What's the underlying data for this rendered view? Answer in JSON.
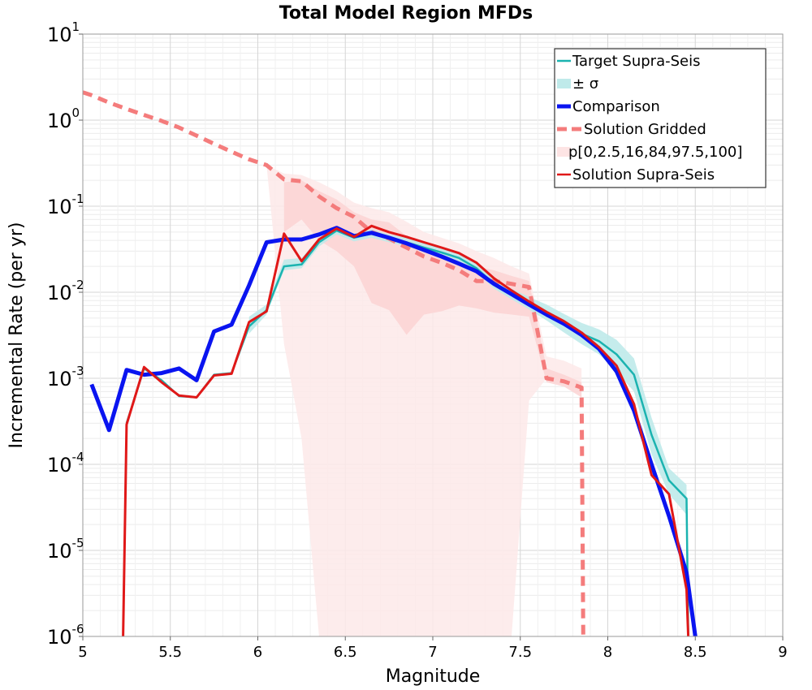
{
  "chart_data": {
    "type": "line",
    "title": "Total Model Region MFDs",
    "xlabel": "Magnitude",
    "ylabel": "Incremental Rate (per yr)",
    "xlim": [
      5,
      9
    ],
    "ylim": [
      1e-06,
      10
    ],
    "yscale": "log",
    "xticks": [
      "5",
      "5.5",
      "6",
      "6.5",
      "7",
      "7.5",
      "8",
      "8.5",
      "9"
    ],
    "yticks": [
      {
        "base": "10",
        "exp": "-6"
      },
      {
        "base": "10",
        "exp": "-5"
      },
      {
        "base": "10",
        "exp": "-4"
      },
      {
        "base": "10",
        "exp": "-3"
      },
      {
        "base": "10",
        "exp": "-2"
      },
      {
        "base": "10",
        "exp": "-1"
      },
      {
        "base": "10",
        "exp": "0"
      },
      {
        "base": "10",
        "exp": "1"
      }
    ],
    "grid": true,
    "legend_position": "top-right",
    "legend": [
      {
        "label": "Target Supra-Seis",
        "style": "line",
        "color": "#1bb3b0"
      },
      {
        "label": "± σ",
        "style": "band",
        "color": "#bfeaea"
      },
      {
        "label": "Comparison",
        "style": "thickline",
        "color": "#0a14f0"
      },
      {
        "label": "Solution Gridded",
        "style": "dashed",
        "color": "#f47c7c"
      },
      {
        "label": "p[0,2.5,16,84,97.5,100]",
        "style": "band",
        "color": "#fde4e4"
      },
      {
        "label": "Solution Supra-Seis",
        "style": "line",
        "color": "#e01818"
      }
    ],
    "series": [
      {
        "name": "Target Supra-Seis",
        "color": "#1bb3b0",
        "x": [
          5.25,
          5.35,
          5.45,
          5.55,
          5.65,
          5.75,
          5.85,
          5.95,
          6.05,
          6.15,
          6.25,
          6.35,
          6.45,
          6.55,
          6.65,
          6.75,
          6.85,
          6.95,
          7.05,
          7.15,
          7.25,
          7.35,
          7.45,
          7.55,
          7.65,
          7.75,
          7.85,
          7.95,
          8.05,
          8.15,
          8.25,
          8.35,
          8.45,
          8.46
        ],
        "y": [
          0.0003,
          0.0013,
          0.00095,
          0.00062,
          0.0006,
          0.0011,
          0.00115,
          0.004,
          0.0062,
          0.02,
          0.021,
          0.038,
          0.052,
          0.043,
          0.048,
          0.042,
          0.038,
          0.033,
          0.029,
          0.025,
          0.019,
          0.0125,
          0.0095,
          0.0075,
          0.0058,
          0.0043,
          0.0033,
          0.0027,
          0.0019,
          0.0011,
          0.00022,
          6.5e-05,
          4e-05,
          1e-06
        ]
      },
      {
        "name": "Comparison",
        "color": "#0a14f0",
        "x": [
          5.05,
          5.15,
          5.25,
          5.35,
          5.45,
          5.55,
          5.65,
          5.75,
          5.85,
          5.95,
          6.05,
          6.15,
          6.25,
          6.35,
          6.45,
          6.55,
          6.65,
          6.75,
          6.85,
          6.95,
          7.05,
          7.15,
          7.25,
          7.35,
          7.45,
          7.55,
          7.65,
          7.75,
          7.85,
          7.95,
          8.05,
          8.15,
          8.25,
          8.35,
          8.45,
          8.5
        ],
        "y": [
          0.00085,
          0.00025,
          0.00125,
          0.0011,
          0.00115,
          0.0013,
          0.00095,
          0.0035,
          0.0042,
          0.012,
          0.038,
          0.041,
          0.041,
          0.047,
          0.056,
          0.045,
          0.049,
          0.043,
          0.037,
          0.031,
          0.026,
          0.0215,
          0.0175,
          0.0125,
          0.0095,
          0.0072,
          0.0055,
          0.0043,
          0.0032,
          0.0022,
          0.0012,
          0.00042,
          0.0001,
          2.5e-05,
          5.5e-06,
          1e-06
        ]
      },
      {
        "name": "Solution Gridded",
        "color": "#f47c7c",
        "x": [
          5.0,
          5.05,
          5.15,
          5.25,
          5.35,
          5.45,
          5.55,
          5.65,
          5.75,
          5.85,
          5.95,
          6.05,
          6.15,
          6.25,
          6.35,
          6.45,
          6.55,
          6.65,
          6.75,
          6.85,
          6.95,
          7.05,
          7.15,
          7.25,
          7.35,
          7.45,
          7.55,
          7.65,
          7.75,
          7.85,
          7.86
        ],
        "y": [
          2.1,
          1.95,
          1.6,
          1.35,
          1.15,
          0.98,
          0.82,
          0.66,
          0.53,
          0.43,
          0.35,
          0.3,
          0.205,
          0.195,
          0.13,
          0.095,
          0.075,
          0.05,
          0.042,
          0.033,
          0.026,
          0.022,
          0.018,
          0.0135,
          0.0135,
          0.0125,
          0.0115,
          0.001,
          0.00092,
          0.00078,
          1e-06
        ]
      },
      {
        "name": "Solution Supra-Seis",
        "color": "#e01818",
        "x": [
          5.23,
          5.25,
          5.35,
          5.45,
          5.55,
          5.65,
          5.75,
          5.85,
          5.95,
          6.05,
          6.15,
          6.25,
          6.35,
          6.45,
          6.55,
          6.65,
          6.75,
          6.85,
          6.95,
          7.05,
          7.15,
          7.25,
          7.35,
          7.45,
          7.55,
          7.65,
          7.75,
          7.85,
          7.95,
          8.05,
          8.15,
          8.25,
          8.35,
          8.45,
          8.46
        ],
        "y": [
          1e-06,
          0.00029,
          0.00135,
          0.0009,
          0.00063,
          0.0006,
          0.00108,
          0.00113,
          0.0045,
          0.006,
          0.048,
          0.023,
          0.041,
          0.055,
          0.044,
          0.059,
          0.05,
          0.044,
          0.038,
          0.033,
          0.0285,
          0.022,
          0.0145,
          0.0105,
          0.0078,
          0.0059,
          0.0046,
          0.0034,
          0.0023,
          0.0014,
          0.0005,
          7.5e-05,
          4.5e-05,
          3.5e-06,
          1e-06
        ]
      }
    ],
    "bands": [
      {
        "name": "± σ",
        "color": "#bfeaea",
        "x": [
          5.95,
          6.05,
          6.15,
          6.25,
          6.35,
          6.45,
          6.55,
          6.65,
          6.75,
          6.85,
          6.95,
          7.05,
          7.15,
          7.25,
          7.35,
          7.45,
          7.55,
          7.65,
          7.75,
          7.85,
          7.95,
          8.05,
          8.15,
          8.25,
          8.35,
          8.45
        ],
        "lower": [
          0.0033,
          0.0055,
          0.018,
          0.019,
          0.034,
          0.047,
          0.039,
          0.043,
          0.038,
          0.034,
          0.03,
          0.026,
          0.022,
          0.017,
          0.011,
          0.0083,
          0.0063,
          0.0047,
          0.0034,
          0.0025,
          0.0019,
          0.0012,
          0.0007,
          0.00013,
          4.5e-05,
          2.6e-05
        ],
        "upper": [
          0.0052,
          0.0072,
          0.024,
          0.025,
          0.043,
          0.058,
          0.048,
          0.054,
          0.047,
          0.043,
          0.037,
          0.033,
          0.029,
          0.022,
          0.0145,
          0.011,
          0.0088,
          0.0072,
          0.0056,
          0.0044,
          0.0037,
          0.0028,
          0.0017,
          0.00035,
          9e-05,
          5.8e-05
        ]
      },
      {
        "name": "p[0,2.5,16,84,97.5,100] outer",
        "color": "#fde9e9",
        "x": [
          6.05,
          6.15,
          6.25,
          6.35,
          6.45,
          6.55,
          6.65,
          6.75,
          6.85,
          6.95,
          7.05,
          7.15,
          7.25,
          7.35,
          7.45,
          7.55,
          7.65,
          7.75,
          7.85
        ],
        "lower": [
          0.3,
          0.0025,
          0.0002,
          1e-06,
          1e-06,
          1e-06,
          1e-06,
          1e-06,
          1e-06,
          1e-06,
          1e-06,
          1e-06,
          1e-06,
          1e-06,
          1e-06,
          0.00055,
          0.001,
          0.0009,
          0.0007
        ],
        "upper": [
          0.3,
          0.24,
          0.23,
          0.19,
          0.15,
          0.11,
          0.095,
          0.085,
          0.066,
          0.05,
          0.043,
          0.037,
          0.03,
          0.025,
          0.02,
          0.0165,
          0.0018,
          0.0016,
          0.0013
        ]
      },
      {
        "name": "p[0,2.5,16,84,97.5,100] inner",
        "color": "#fbd3d3",
        "x": [
          6.15,
          6.25,
          6.35,
          6.45,
          6.55,
          6.65,
          6.75,
          6.85,
          6.95,
          7.05,
          7.15,
          7.25,
          7.35,
          7.45,
          7.55,
          7.65,
          7.75,
          7.85
        ],
        "lower": [
          0.05,
          0.07,
          0.04,
          0.03,
          0.02,
          0.0075,
          0.0062,
          0.0032,
          0.0055,
          0.006,
          0.007,
          0.0065,
          0.0058,
          0.0055,
          0.0052,
          0.0009,
          0.0008,
          0.0006
        ],
        "upper": [
          0.19,
          0.2,
          0.15,
          0.12,
          0.085,
          0.07,
          0.065,
          0.045,
          0.037,
          0.03,
          0.025,
          0.02,
          0.018,
          0.0155,
          0.0135,
          0.0013,
          0.0011,
          0.0009
        ]
      }
    ]
  }
}
